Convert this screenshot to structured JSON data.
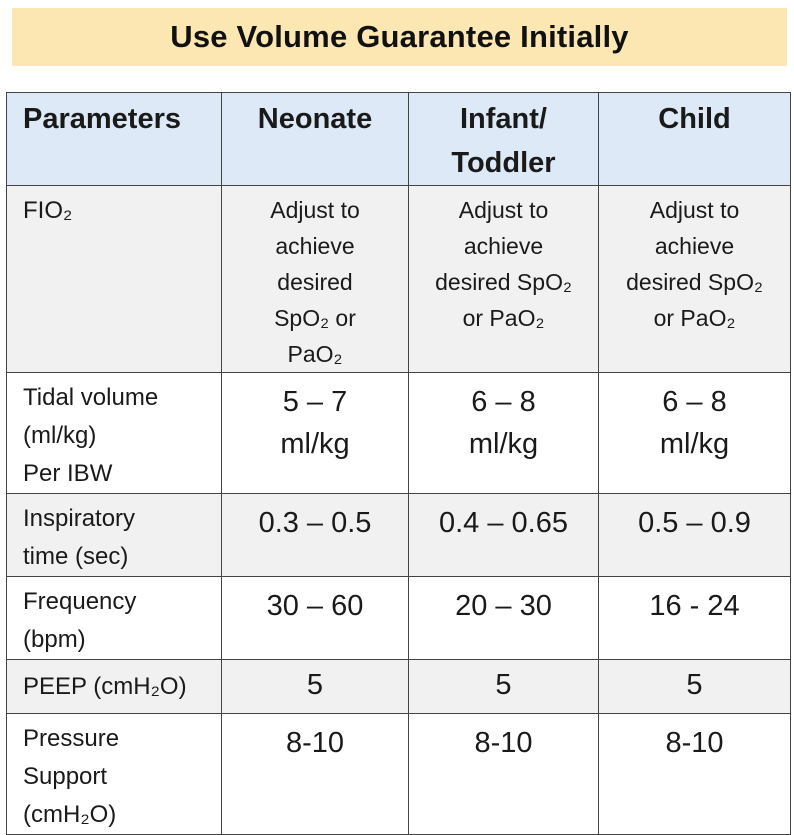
{
  "title": "Use Volume Guarantee Initially",
  "headers": [
    "Parameters",
    "Neonate",
    "Infant/\nToddler",
    "Child"
  ],
  "rows": [
    {
      "label": "FIO₂",
      "values": [
        "Adjust to\nachieve\ndesired\nSpO₂ or\nPaO₂",
        "Adjust to\nachieve\ndesired SpO₂\nor PaO₂",
        "Adjust to\nachieve\ndesired SpO₂\nor PaO₂"
      ]
    },
    {
      "label": "Tidal volume\n(ml/kg)\nPer IBW",
      "values": [
        "5 – 7\nml/kg",
        "6 – 8\nml/kg",
        "6 – 8\nml/kg"
      ]
    },
    {
      "label": "Inspiratory\ntime (sec)",
      "values": [
        "0.3 – 0.5",
        "0.4 – 0.65",
        "0.5 – 0.9"
      ]
    },
    {
      "label": "Frequency\n(bpm)",
      "values": [
        "30 – 60",
        "20 – 30",
        "16 - 24"
      ]
    },
    {
      "label": "PEEP (cmH₂O)",
      "values": [
        "5",
        "5",
        "5"
      ]
    },
    {
      "label": "Pressure\nSupport\n(cmH₂O)",
      "values": [
        "8-10",
        "8-10",
        "8-10"
      ]
    }
  ],
  "colors": {
    "title_background": "#fce7b2",
    "header_background": "#dde9f6",
    "shaded_row_background": "#f1f1f1",
    "border": "#444444"
  }
}
